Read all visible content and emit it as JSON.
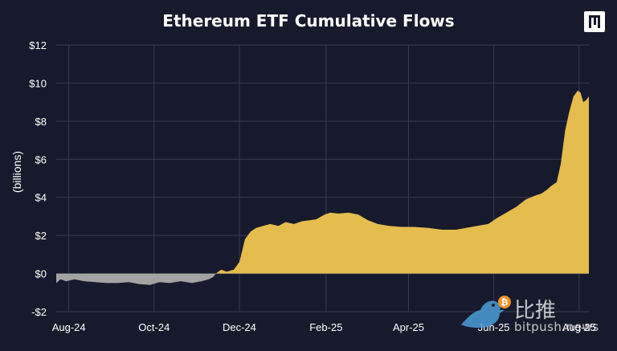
{
  "brand": {
    "watermark_cn": "比推",
    "watermark_en": "bitpush.news"
  },
  "colors": {
    "background": "#171a2c",
    "positive_area": "#e5bc4e",
    "negative_area": "#a3a3a3",
    "grid": "#3a3d52",
    "text": "#ffffff"
  },
  "chart_data": {
    "type": "area",
    "title": "Ethereum ETF Cumulative Flows",
    "xlabel": "",
    "ylabel": "(billions)",
    "ylim": [
      -2,
      12
    ],
    "yticks": [
      -2,
      0,
      2,
      4,
      6,
      8,
      10,
      12
    ],
    "ytick_labels": [
      "-$2",
      "$0",
      "$2",
      "$4",
      "$6",
      "$8",
      "$10",
      "$12"
    ],
    "xlim": [
      "2024-07-23",
      "2025-08-08"
    ],
    "xticks": [
      "2024-08-01",
      "2024-10-01",
      "2024-12-01",
      "2025-02-01",
      "2025-04-01",
      "2025-06-01",
      "2025-08-01"
    ],
    "xtick_labels": [
      "Aug-24",
      "Oct-24",
      "Dec-24",
      "Feb-25",
      "Apr-25",
      "Jun-25",
      "Aug-25"
    ],
    "grid": true,
    "legend": "none",
    "units": "USD billions",
    "series": [
      {
        "x": [
          "2024-07-23",
          "2024-07-26",
          "2024-07-30",
          "2024-08-05",
          "2024-08-12",
          "2024-08-20",
          "2024-08-28",
          "2024-09-05",
          "2024-09-13",
          "2024-09-20",
          "2024-09-28",
          "2024-10-05",
          "2024-10-12",
          "2024-10-20",
          "2024-10-28",
          "2024-11-04",
          "2024-11-09",
          "2024-11-12",
          "2024-11-15",
          "2024-11-18",
          "2024-11-22",
          "2024-11-27",
          "2024-12-01",
          "2024-12-05",
          "2024-12-09",
          "2024-12-13",
          "2024-12-18",
          "2024-12-23",
          "2024-12-29",
          "2025-01-03",
          "2025-01-09",
          "2025-01-15",
          "2025-01-20",
          "2025-01-25",
          "2025-01-31",
          "2025-02-04",
          "2025-02-10",
          "2025-02-17",
          "2025-02-24",
          "2025-03-03",
          "2025-03-10",
          "2025-03-18",
          "2025-03-27",
          "2025-04-05",
          "2025-04-15",
          "2025-04-25",
          "2025-05-05",
          "2025-05-12",
          "2025-05-20",
          "2025-05-28",
          "2025-06-03",
          "2025-06-10",
          "2025-06-17",
          "2025-06-24",
          "2025-07-01",
          "2025-07-05",
          "2025-07-09",
          "2025-07-12",
          "2025-07-16",
          "2025-07-19",
          "2025-07-22",
          "2025-07-25",
          "2025-07-28",
          "2025-07-31",
          "2025-08-02",
          "2025-08-04",
          "2025-08-06",
          "2025-08-08"
        ],
        "y": [
          -0.5,
          -0.3,
          -0.4,
          -0.3,
          -0.4,
          -0.45,
          -0.5,
          -0.5,
          -0.45,
          -0.55,
          -0.6,
          -0.45,
          -0.5,
          -0.4,
          -0.5,
          -0.4,
          -0.3,
          -0.2,
          0.05,
          0.2,
          0.1,
          0.2,
          0.6,
          1.8,
          2.2,
          2.4,
          2.5,
          2.6,
          2.5,
          2.7,
          2.6,
          2.75,
          2.8,
          2.85,
          3.1,
          3.2,
          3.15,
          3.2,
          3.1,
          2.8,
          2.6,
          2.5,
          2.45,
          2.45,
          2.4,
          2.3,
          2.3,
          2.4,
          2.5,
          2.6,
          2.9,
          3.2,
          3.5,
          3.9,
          4.1,
          4.2,
          4.4,
          4.6,
          4.8,
          5.8,
          7.5,
          8.5,
          9.3,
          9.6,
          9.5,
          9.0,
          9.1,
          9.3
        ]
      }
    ]
  }
}
